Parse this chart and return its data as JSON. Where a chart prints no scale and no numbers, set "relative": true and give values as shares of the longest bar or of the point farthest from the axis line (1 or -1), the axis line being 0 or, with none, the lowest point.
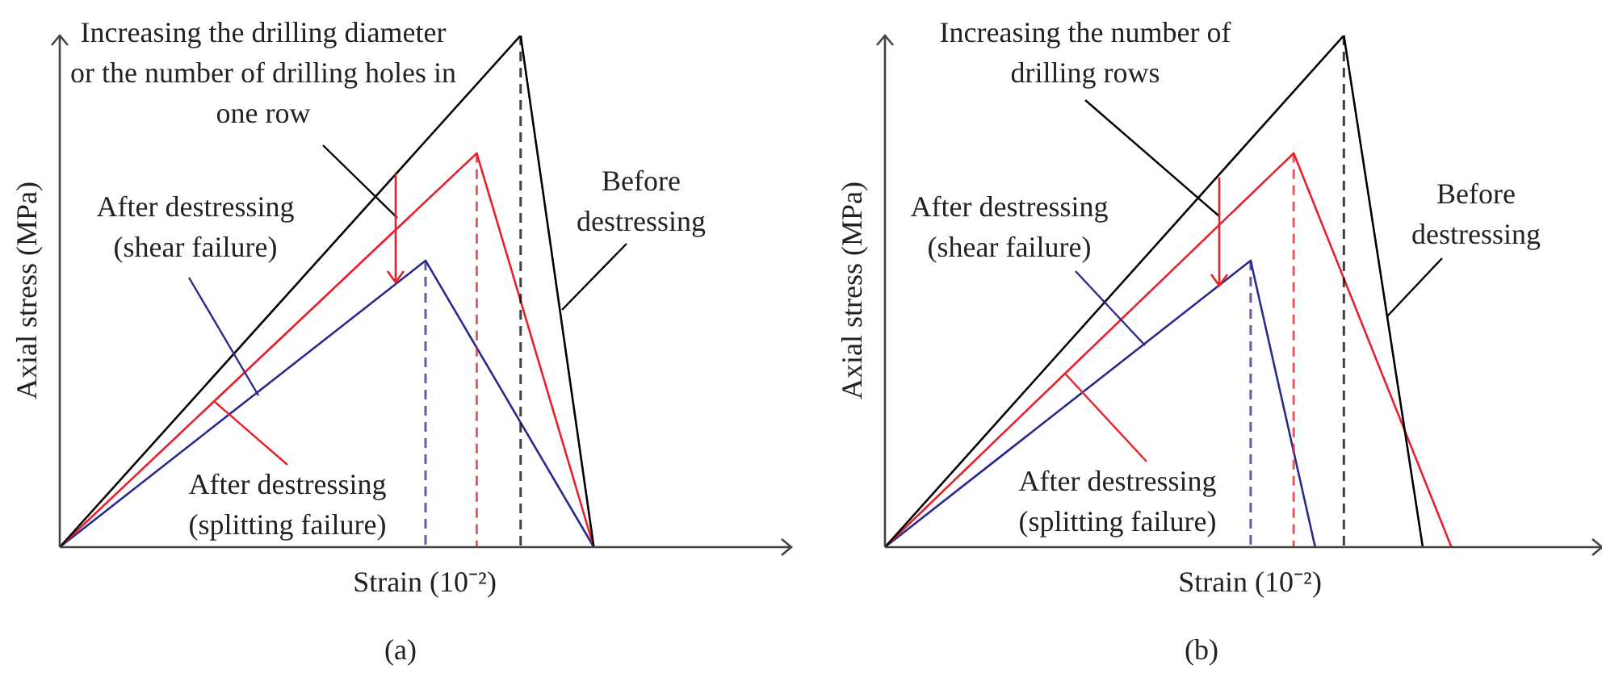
{
  "chart_data": [
    {
      "type": "line",
      "title": "(a)",
      "xlabel": "Strain (10⁻²)",
      "ylabel": "Axial stress (MPa)",
      "relative": true,
      "tick_labels": false,
      "categories": [
        null,
        null,
        null,
        null,
        null,
        null,
        null,
        null,
        null,
        null,
        null,
        null,
        null,
        null,
        null,
        null,
        null,
        null,
        null,
        null,
        null,
        null,
        null,
        null,
        null,
        null,
        null,
        null,
        null,
        null,
        null,
        null,
        null,
        null,
        null,
        null,
        null,
        null,
        null,
        null,
        null,
        null,
        null,
        null,
        null,
        null,
        null,
        null,
        null,
        null,
        null,
        null,
        null,
        null,
        null,
        null,
        null,
        null,
        null,
        null,
        null,
        null,
        null,
        null,
        null,
        null,
        null,
        null,
        null,
        null,
        null,
        null,
        null,
        null,
        null,
        null,
        null,
        null,
        null,
        null,
        null,
        null,
        null,
        null,
        null,
        null,
        null,
        null,
        null,
        null,
        null,
        null,
        null,
        null,
        null,
        null,
        null,
        null,
        null,
        null,
        null
      ],
      "annotations": [
        "Increasing the drilling diameter or the number of drilling holes in one row",
        "Before destressing",
        "After destressing (shear failure)",
        "After destressing (splitting failure)"
      ],
      "series": [
        {
          "color": "#000000",
          "values": [
            0,
            null,
            null,
            null,
            null,
            null,
            null,
            null,
            null,
            null,
            null,
            null,
            null,
            null,
            null,
            null,
            null,
            null,
            null,
            null,
            null,
            null,
            null,
            null,
            null,
            null,
            null,
            null,
            null,
            null,
            null,
            null,
            null,
            null,
            null,
            null,
            null,
            null,
            null,
            null,
            null,
            null,
            null,
            null,
            null,
            null,
            null,
            null,
            null,
            null,
            null,
            null,
            null,
            null,
            null,
            null,
            null,
            null,
            null,
            null,
            null,
            null,
            null,
            1,
            null,
            null,
            null,
            null,
            null,
            null,
            null,
            null,
            null,
            0,
            null,
            null,
            null,
            null,
            null,
            null,
            null,
            null,
            null,
            null,
            null,
            null,
            null,
            null,
            null,
            null,
            null,
            null,
            null,
            null,
            null,
            null,
            null,
            null,
            null,
            null,
            null
          ]
        },
        {
          "color": "#e8202a",
          "values": [
            0,
            null,
            null,
            null,
            null,
            null,
            null,
            null,
            null,
            null,
            null,
            null,
            null,
            null,
            null,
            null,
            null,
            null,
            null,
            null,
            null,
            null,
            null,
            null,
            null,
            null,
            null,
            null,
            null,
            null,
            null,
            null,
            null,
            null,
            null,
            null,
            null,
            null,
            null,
            null,
            null,
            null,
            null,
            null,
            null,
            null,
            null,
            null,
            null,
            null,
            null,
            null,
            null,
            null,
            null,
            null,
            null,
            0.77,
            null,
            null,
            null,
            null,
            null,
            null,
            null,
            null,
            null,
            null,
            null,
            null,
            null,
            null,
            null,
            0,
            null,
            null,
            null,
            null,
            null,
            null,
            null,
            null,
            null,
            null,
            null,
            null,
            null,
            null,
            null,
            null,
            null,
            null,
            null,
            null,
            null,
            null,
            null,
            null,
            null,
            null,
            null
          ]
        },
        {
          "color": "#2a2a8c",
          "values": [
            0,
            null,
            null,
            null,
            null,
            null,
            null,
            null,
            null,
            null,
            null,
            null,
            null,
            null,
            null,
            null,
            null,
            null,
            null,
            null,
            null,
            null,
            null,
            null,
            null,
            null,
            null,
            null,
            null,
            null,
            null,
            null,
            null,
            null,
            null,
            null,
            null,
            null,
            null,
            null,
            null,
            null,
            null,
            null,
            null,
            null,
            null,
            null,
            null,
            null,
            0.56,
            null,
            null,
            null,
            null,
            null,
            null,
            null,
            null,
            null,
            null,
            null,
            null,
            null,
            null,
            null,
            null,
            null,
            null,
            null,
            null,
            null,
            null,
            0,
            null,
            null,
            null,
            null,
            null,
            null,
            null,
            null,
            null,
            null,
            null,
            null,
            null,
            null,
            null,
            null,
            null,
            null,
            null,
            null,
            null,
            null,
            null,
            null,
            null,
            null,
            null
          ]
        }
      ]
    },
    {
      "type": "line",
      "title": "(b)",
      "xlabel": "Strain (10⁻²)",
      "ylabel": "Axial stress (MPa)",
      "relative": true,
      "tick_labels": false,
      "categories": [
        null,
        null,
        null,
        null,
        null,
        null,
        null,
        null,
        null,
        null,
        null,
        null,
        null,
        null,
        null,
        null,
        null,
        null,
        null,
        null,
        null,
        null,
        null,
        null,
        null,
        null,
        null,
        null,
        null,
        null,
        null,
        null,
        null,
        null,
        null,
        null,
        null,
        null,
        null,
        null,
        null,
        null,
        null,
        null,
        null,
        null,
        null,
        null,
        null,
        null,
        null,
        null,
        null,
        null,
        null,
        null,
        null,
        null,
        null,
        null,
        null,
        null,
        null,
        null,
        null,
        null,
        null,
        null,
        null,
        null,
        null,
        null,
        null,
        null,
        null,
        null,
        null,
        null,
        null,
        null,
        null,
        null,
        null,
        null,
        null,
        null,
        null,
        null,
        null,
        null,
        null,
        null,
        null,
        null,
        null,
        null,
        null,
        null,
        null,
        null,
        null
      ],
      "annotations": [
        "Increasing the number of drilling rows",
        "Before destressing",
        "After destressing (shear failure)",
        "After destressing (splitting failure)"
      ],
      "series": [
        {
          "color": "#000000",
          "values": [
            0,
            null,
            null,
            null,
            null,
            null,
            null,
            null,
            null,
            null,
            null,
            null,
            null,
            null,
            null,
            null,
            null,
            null,
            null,
            null,
            null,
            null,
            null,
            null,
            null,
            null,
            null,
            null,
            null,
            null,
            null,
            null,
            null,
            null,
            null,
            null,
            null,
            null,
            null,
            null,
            null,
            null,
            null,
            null,
            null,
            null,
            null,
            null,
            null,
            null,
            null,
            null,
            null,
            null,
            null,
            null,
            null,
            null,
            null,
            null,
            null,
            null,
            null,
            null,
            1,
            null,
            null,
            null,
            null,
            null,
            null,
            null,
            null,
            null,
            null,
            0,
            null,
            null,
            null,
            null,
            null,
            null,
            null,
            null,
            null,
            null,
            null,
            null,
            null,
            null,
            null,
            null,
            null,
            null,
            null,
            null,
            null,
            null,
            null,
            null,
            null
          ]
        },
        {
          "color": "#e8202a",
          "values": [
            0,
            null,
            null,
            null,
            null,
            null,
            null,
            null,
            null,
            null,
            null,
            null,
            null,
            null,
            null,
            null,
            null,
            null,
            null,
            null,
            null,
            null,
            null,
            null,
            null,
            null,
            null,
            null,
            null,
            null,
            null,
            null,
            null,
            null,
            null,
            null,
            null,
            null,
            null,
            null,
            null,
            null,
            null,
            null,
            null,
            null,
            null,
            null,
            null,
            null,
            null,
            null,
            null,
            null,
            null,
            null,
            null,
            0.77,
            null,
            null,
            null,
            null,
            null,
            null,
            null,
            null,
            null,
            null,
            null,
            null,
            null,
            null,
            null,
            null,
            null,
            null,
            null,
            null,
            null,
            0,
            null,
            null,
            null,
            null,
            null,
            null,
            null,
            null,
            null,
            null,
            null,
            null,
            null,
            null,
            null,
            null,
            null,
            null,
            null,
            null,
            null
          ]
        },
        {
          "color": "#2a2a8c",
          "values": [
            0,
            null,
            null,
            null,
            null,
            null,
            null,
            null,
            null,
            null,
            null,
            null,
            null,
            null,
            null,
            null,
            null,
            null,
            null,
            null,
            null,
            null,
            null,
            null,
            null,
            null,
            null,
            null,
            null,
            null,
            null,
            null,
            null,
            null,
            null,
            null,
            null,
            null,
            null,
            null,
            null,
            null,
            null,
            null,
            null,
            null,
            null,
            null,
            null,
            null,
            null,
            0.56,
            null,
            null,
            null,
            null,
            null,
            null,
            null,
            null,
            0,
            null,
            null,
            null,
            null,
            null,
            null,
            null,
            null,
            null,
            null,
            null,
            null,
            null,
            null,
            null,
            null,
            null,
            null,
            null,
            null,
            null,
            null,
            null,
            null,
            null,
            null,
            null,
            null,
            null,
            null,
            null,
            null,
            null,
            null,
            null,
            null,
            null,
            null,
            null,
            null
          ]
        }
      ]
    }
  ]
}
